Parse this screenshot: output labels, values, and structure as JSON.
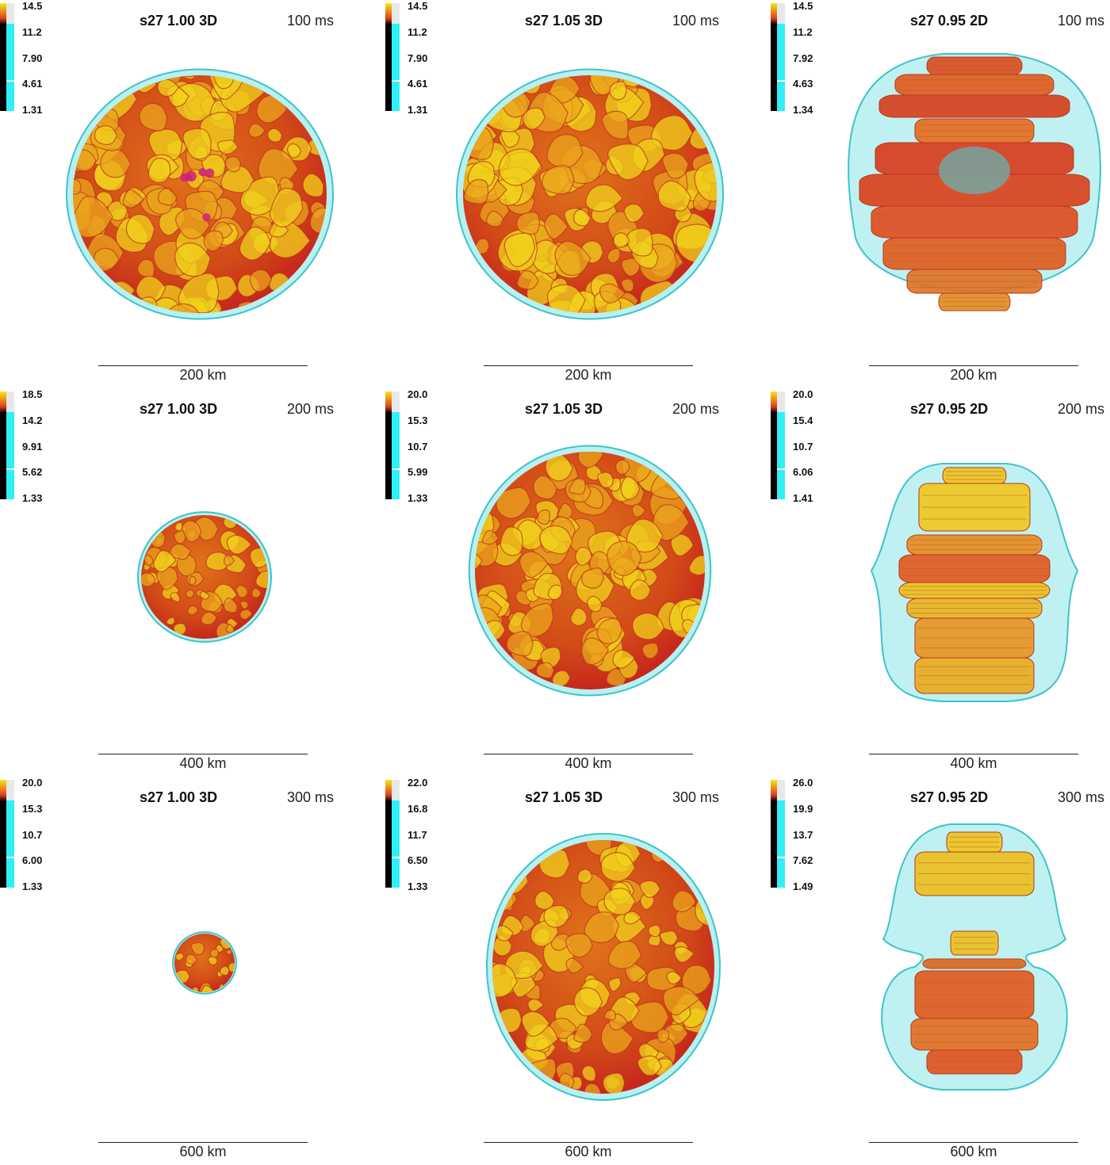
{
  "panels": [
    {
      "title": "s27 1.00 3D",
      "time": "100 ms",
      "scale": "200 km",
      "ticks": [
        "14.5",
        "11.2",
        "7.90",
        "4.61",
        "1.31"
      ],
      "kind": "sphere",
      "shape": "round"
    },
    {
      "title": "s27 1.05 3D",
      "time": "100 ms",
      "scale": "200 km",
      "ticks": [
        "14.5",
        "11.2",
        "7.90",
        "4.61",
        "1.31"
      ],
      "kind": "sphere",
      "shape": "round"
    },
    {
      "title": "s27 0.95 2D",
      "time": "100 ms",
      "scale": "200 km",
      "ticks": [
        "14.5",
        "11.2",
        "7.92",
        "4.63",
        "1.34"
      ],
      "kind": "stack",
      "shape": "stack1"
    },
    {
      "title": "s27 1.00 3D",
      "time": "200 ms",
      "scale": "400 km",
      "ticks": [
        "18.5",
        "14.2",
        "9.91",
        "5.62",
        "1.33"
      ],
      "kind": "sphere",
      "shape": "small"
    },
    {
      "title": "s27 1.05 3D",
      "time": "200 ms",
      "scale": "400 km",
      "ticks": [
        "20.0",
        "15.3",
        "10.7",
        "5.99",
        "1.33"
      ],
      "kind": "sphere",
      "shape": "blob"
    },
    {
      "title": "s27 0.95 2D",
      "time": "200 ms",
      "scale": "400 km",
      "ticks": [
        "20.0",
        "15.4",
        "10.7",
        "6.06",
        "1.41"
      ],
      "kind": "stack",
      "shape": "stack2"
    },
    {
      "title": "s27 1.00 3D",
      "time": "300 ms",
      "scale": "600 km",
      "ticks": [
        "20.0",
        "15.3",
        "10.7",
        "6.00",
        "1.33"
      ],
      "kind": "sphere",
      "shape": "tiny"
    },
    {
      "title": "s27 1.05 3D",
      "time": "300 ms",
      "scale": "600 km",
      "ticks": [
        "22.0",
        "16.8",
        "11.7",
        "6.50",
        "1.33"
      ],
      "kind": "sphere",
      "shape": "lopsided"
    },
    {
      "title": "s27 0.95 2D",
      "time": "300 ms",
      "scale": "600 km",
      "ticks": [
        "26.0",
        "19.9",
        "13.7",
        "7.62",
        "1.49"
      ],
      "kind": "stack",
      "shape": "stack3"
    }
  ],
  "colors": {
    "shell": "#7fe3e6",
    "shell_edge": "#3fc3c8",
    "hot": "#f0d21c",
    "mid": "#e0731a",
    "cool": "#c6281c",
    "magenta": "#d0207a"
  }
}
